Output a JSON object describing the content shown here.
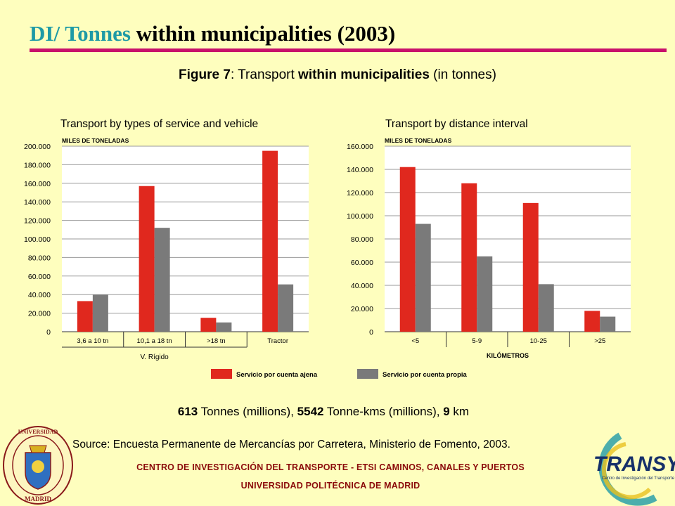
{
  "slide": {
    "title_accent": "DI/ Tonnes",
    "title_rest": " within municipalities (2003)",
    "caption_bold": "Figure 7",
    "caption_mid": ": Transport ",
    "caption_bold2": "within municipalities",
    "caption_end": " (in tonnes)",
    "summary": [
      {
        "bold": "613",
        "text": " Tonnes (millions), "
      },
      {
        "bold": "5542",
        "text": " Tonne-kms (millions), "
      },
      {
        "bold": "9",
        "text": " km"
      }
    ],
    "source": "Source: Encuesta Permanente de Mercancías por Carretera, Ministerio de Fomento, 2003.",
    "footer_line1": "CENTRO DE INVESTIGACIÓN DEL TRANSPORTE - ETSI CAMINOS, CANALES Y PUERTOS",
    "footer_line2": "UNIVERSIDAD POLITÉCNICA DE MADRID",
    "seal_text": "UNIVERSIDAD POLITÉCNICA MADRID",
    "logo_text": "TRANSYT",
    "logo_subtext": "Centro de Investigación del Transporte"
  },
  "legend": [
    {
      "label": "Servicio por cuenta ajena",
      "color": "#e0281e"
    },
    {
      "label": "Servicio por cuenta propia",
      "color": "#7a7a7a"
    }
  ],
  "chart_data": [
    {
      "type": "bar",
      "title": "Transport by types of service and vehicle",
      "ylabel": "MILES DE TONELADAS",
      "xlabel": "V. Rígido",
      "ylim": [
        0,
        200000
      ],
      "yticks": [
        "0",
        "20.000",
        "40.000",
        "60.000",
        "80.000",
        "100.000",
        "120.000",
        "140.000",
        "160.000",
        "180.000",
        "200.000"
      ],
      "categories": [
        "3,6 a 10 tn",
        "10,1 a 18 tn",
        ">18 tn",
        "Tractor"
      ],
      "series": [
        {
          "name": "Servicio por cuenta ajena",
          "values": [
            33000,
            157000,
            15000,
            195000
          ]
        },
        {
          "name": "Servicio por cuenta propia",
          "values": [
            40000,
            112000,
            10000,
            51000
          ]
        }
      ],
      "grid": true
    },
    {
      "type": "bar",
      "title": "Transport by distance interval",
      "ylabel": "MILES DE TONELADAS",
      "xlabel": "KILÓMETROS",
      "ylim": [
        0,
        160000
      ],
      "yticks": [
        "0",
        "20.000",
        "40.000",
        "60.000",
        "80.000",
        "100.000",
        "120.000",
        "140.000",
        "160.000"
      ],
      "categories": [
        "<5",
        "5-9",
        "10-25",
        ">25"
      ],
      "series": [
        {
          "name": "Servicio por cuenta ajena",
          "values": [
            142000,
            128000,
            111000,
            18000
          ]
        },
        {
          "name": "Servicio por cuenta propia",
          "values": [
            93000,
            65000,
            41000,
            13000
          ]
        }
      ],
      "grid": true
    }
  ]
}
